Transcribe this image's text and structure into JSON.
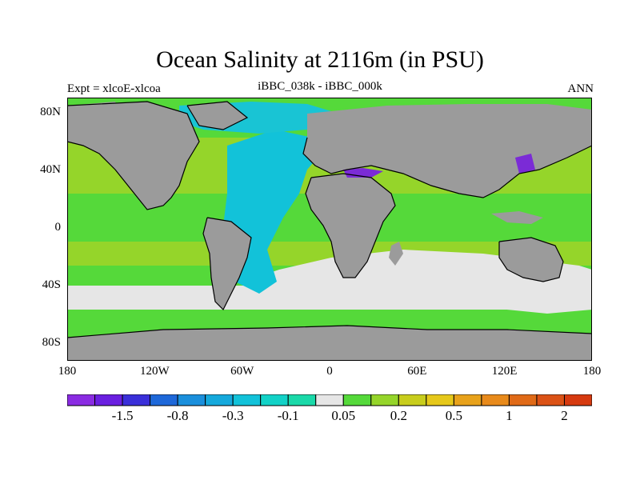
{
  "title": "Ocean Salinity at 2116m (in PSU)",
  "subtitle": "iBBC_038k - iBBC_000k",
  "left_label": "Expt = xlcoE-xlcoa",
  "right_label": "ANN",
  "map": {
    "lat_labels": [
      "80N",
      "40N",
      "0",
      "40S",
      "80S"
    ],
    "lon_labels": [
      "180",
      "120W",
      "60W",
      "0",
      "60E",
      "120E",
      "180"
    ],
    "colors": {
      "land": "#9b9b9b",
      "atlantic": "#12c2d9",
      "arctic": "#19c4d4",
      "southern": "#e6e6e6",
      "pacific_green": "#55d93a",
      "subtropical_lime": "#95d52a",
      "mediterranean": "#7b2bd6",
      "coastline": "#000000"
    }
  },
  "colorbar": {
    "colors": [
      "#8a2be2",
      "#6a1fe0",
      "#3a2fd9",
      "#1e68d9",
      "#1a8fdc",
      "#15a9dc",
      "#12c2d9",
      "#12d2c7",
      "#1ad9a9",
      "#e6e6e6",
      "#55d93a",
      "#95d52a",
      "#c8cd1c",
      "#e6c81a",
      "#e8a21b",
      "#e88a1b",
      "#e06a17",
      "#db5216",
      "#d63a10"
    ],
    "labels": [
      "-1.5",
      "-0.8",
      "-0.3",
      "-0.1",
      "0.05",
      "0.2",
      "0.5",
      "1",
      "2"
    ]
  }
}
